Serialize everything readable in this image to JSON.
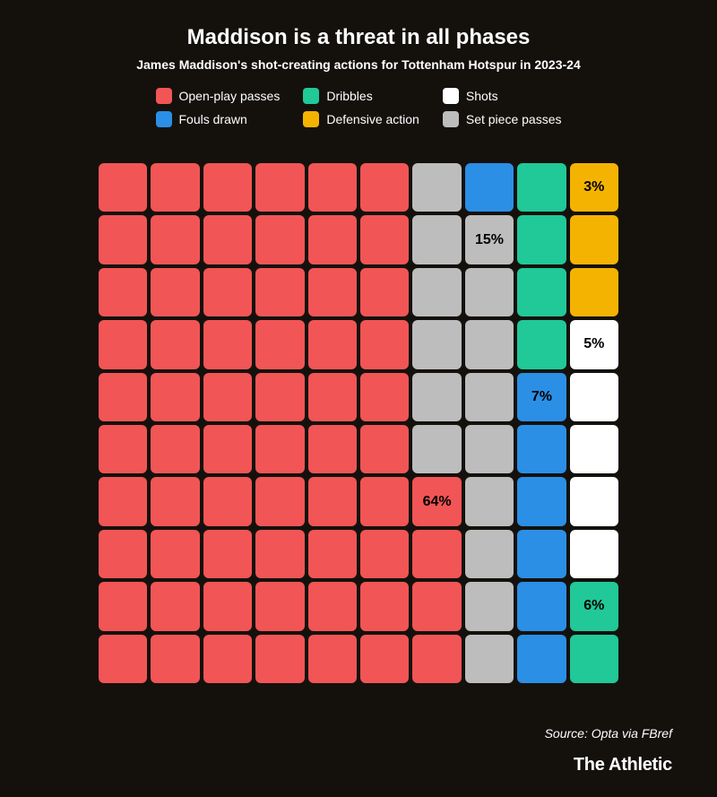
{
  "title": "Maddison is a threat in all phases",
  "subtitle": "James Maddison's shot-creating actions for Tottenham Hotspur in 2023-24",
  "source": "Source: Opta via FBref",
  "brand": "The Athletic",
  "background_color": "#14110d",
  "text_color": "#ffffff",
  "legend": [
    {
      "key": "open",
      "label": "Open-play passes",
      "color": "#f25555"
    },
    {
      "key": "dribble",
      "label": "Dribbles",
      "color": "#20c997"
    },
    {
      "key": "shot",
      "label": "Shots",
      "color": "#ffffff"
    },
    {
      "key": "foul",
      "label": "Fouls drawn",
      "color": "#2b8fe6"
    },
    {
      "key": "def",
      "label": "Defensive action",
      "color": "#f5b301"
    },
    {
      "key": "set",
      "label": "Set piece passes",
      "color": "#bdbdbd"
    }
  ],
  "waffle": {
    "grid_size": 10,
    "cell_radius": 6,
    "gap": 4,
    "cells": [
      [
        "open",
        "open",
        "open",
        "open",
        "open",
        "open",
        "set",
        "foul",
        "dribble",
        "def"
      ],
      [
        "open",
        "open",
        "open",
        "open",
        "open",
        "open",
        "set",
        "set",
        "dribble",
        "def"
      ],
      [
        "open",
        "open",
        "open",
        "open",
        "open",
        "open",
        "set",
        "set",
        "dribble",
        "def"
      ],
      [
        "open",
        "open",
        "open",
        "open",
        "open",
        "open",
        "set",
        "set",
        "dribble",
        "shot"
      ],
      [
        "open",
        "open",
        "open",
        "open",
        "open",
        "open",
        "set",
        "set",
        "foul",
        "shot"
      ],
      [
        "open",
        "open",
        "open",
        "open",
        "open",
        "open",
        "set",
        "set",
        "foul",
        "shot"
      ],
      [
        "open",
        "open",
        "open",
        "open",
        "open",
        "open",
        "open",
        "set",
        "foul",
        "shot"
      ],
      [
        "open",
        "open",
        "open",
        "open",
        "open",
        "open",
        "open",
        "set",
        "foul",
        "shot"
      ],
      [
        "open",
        "open",
        "open",
        "open",
        "open",
        "open",
        "open",
        "set",
        "foul",
        "dribble"
      ],
      [
        "open",
        "open",
        "open",
        "open",
        "open",
        "open",
        "open",
        "set",
        "foul",
        "dribble"
      ]
    ],
    "labels": [
      {
        "row": 0,
        "col": 9,
        "text": "3%",
        "text_color": "#000000"
      },
      {
        "row": 1,
        "col": 7,
        "text": "15%",
        "text_color": "#000000"
      },
      {
        "row": 3,
        "col": 9,
        "text": "5%",
        "text_color": "#000000"
      },
      {
        "row": 4,
        "col": 8,
        "text": "7%",
        "text_color": "#000000"
      },
      {
        "row": 6,
        "col": 6,
        "text": "64%",
        "text_color": "#000000"
      },
      {
        "row": 8,
        "col": 9,
        "text": "6%",
        "text_color": "#000000"
      }
    ]
  }
}
